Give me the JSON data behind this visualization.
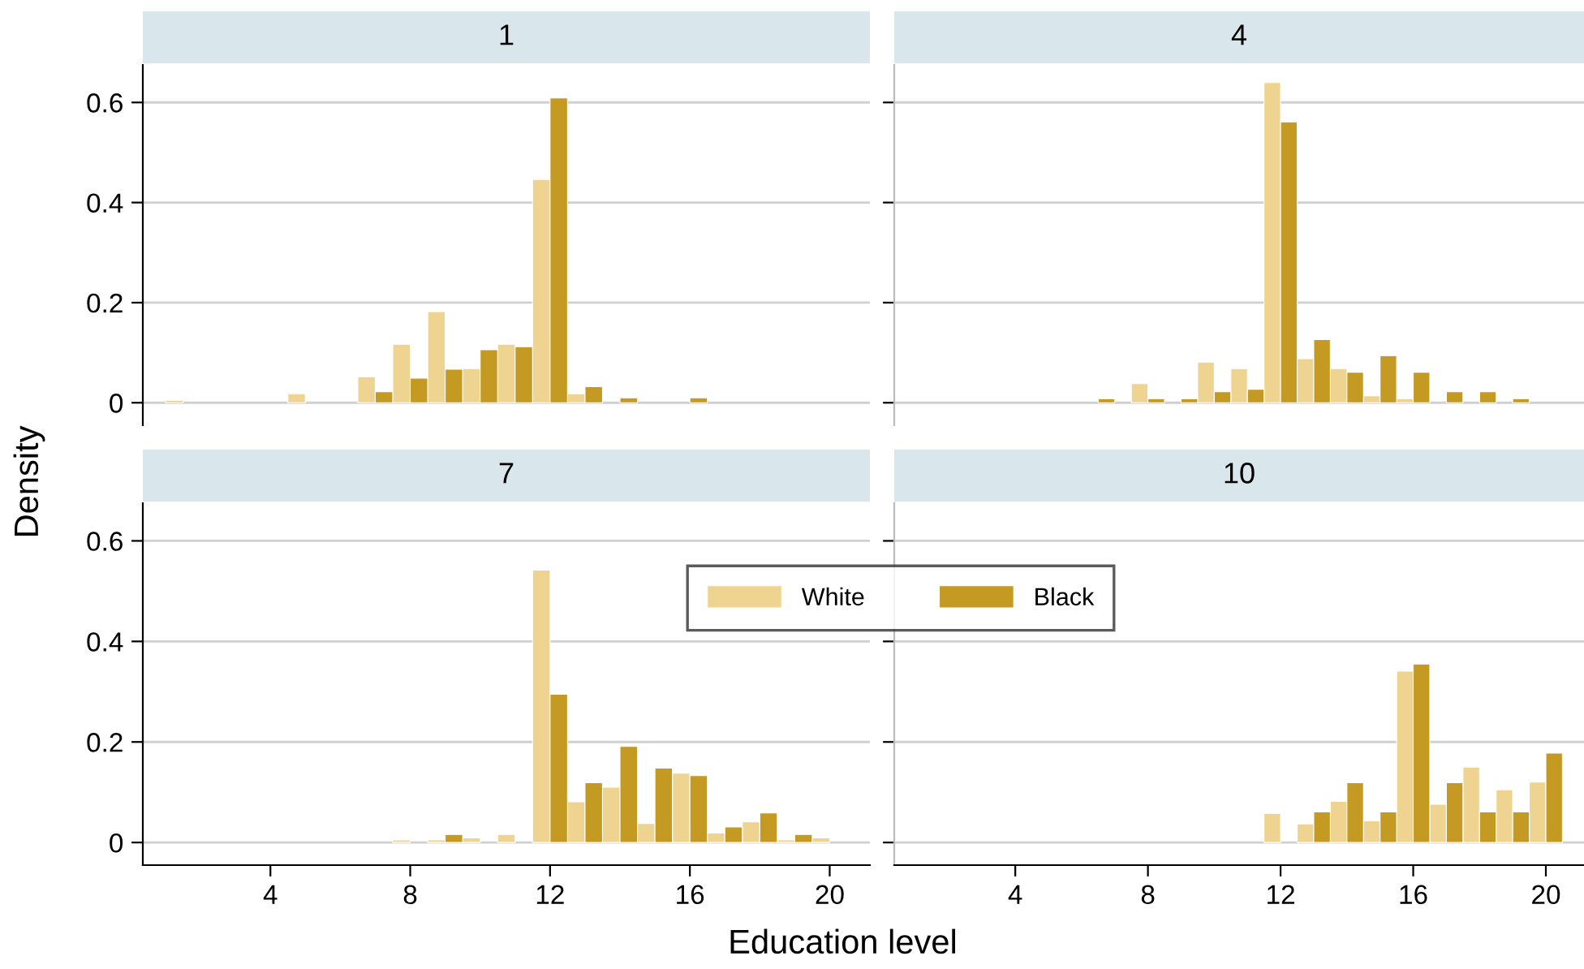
{
  "chart_data": [
    {
      "type": "bar",
      "title": "1",
      "ylabel": "Density",
      "xlim": [
        0.35,
        21.15
      ],
      "ylim": [
        -0.045,
        0.675
      ],
      "xticks": [
        4,
        8,
        12,
        16,
        20
      ],
      "yticks": [
        0,
        0.2,
        0.4,
        0.6
      ],
      "tick_labels": "y",
      "grid": "y",
      "series": [
        {
          "color": "#eed490",
          "x": [
            1.25,
            4.75,
            6.75,
            7.75,
            8.75,
            9.75,
            10.75,
            11.75,
            12.75
          ],
          "values": [
            0.005,
            0.018,
            0.052,
            0.117,
            0.182,
            0.068,
            0.117,
            0.446,
            0.018
          ]
        },
        {
          "color": "#c49a22",
          "x": [
            7.25,
            8.25,
            9.25,
            10.25,
            11.25,
            12.25,
            13.25,
            14.25,
            16.25
          ],
          "values": [
            0.022,
            0.049,
            0.067,
            0.106,
            0.112,
            0.609,
            0.032,
            0.01,
            0.01
          ]
        }
      ]
    },
    {
      "type": "bar",
      "title": "4",
      "xlim": [
        0.35,
        21.15
      ],
      "ylim": [
        -0.045,
        0.675
      ],
      "xticks": [
        4,
        8,
        12,
        16,
        20
      ],
      "yticks": [
        0,
        0.2,
        0.4,
        0.6
      ],
      "tick_labels": false,
      "grid": "y",
      "series": [
        {
          "color": "#eed490",
          "x": [
            7.75,
            9.75,
            10.75,
            11.75,
            12.75,
            13.75,
            14.75,
            15.75
          ],
          "values": [
            0.038,
            0.081,
            0.068,
            0.64,
            0.088,
            0.068,
            0.014,
            0.008
          ]
        },
        {
          "color": "#c49a22",
          "x": [
            6.75,
            8.25,
            9.25,
            10.25,
            11.25,
            12.25,
            13.25,
            14.25,
            15.25,
            16.25,
            17.25,
            18.25,
            19.25
          ],
          "values": [
            0.008,
            0.008,
            0.008,
            0.022,
            0.027,
            0.561,
            0.126,
            0.061,
            0.094,
            0.061,
            0.022,
            0.022,
            0.008
          ]
        }
      ]
    },
    {
      "type": "bar",
      "title": "7",
      "xlabel": "Education level",
      "legend": "top",
      "xlim": [
        0.35,
        21.15
      ],
      "ylim": [
        -0.045,
        0.675
      ],
      "xticks": [
        4,
        8,
        12,
        16,
        20
      ],
      "yticks": [
        0,
        0.2,
        0.4,
        0.6
      ],
      "grid": "y",
      "series": [
        {
          "name": "White",
          "color": "#eed490",
          "x": [
            7.75,
            8.75,
            9.75,
            10.75,
            11.75,
            12.75,
            13.75,
            14.75,
            15.75,
            16.75,
            17.75,
            18.75,
            19.75
          ],
          "values": [
            0.005,
            0.005,
            0.009,
            0.016,
            0.542,
            0.081,
            0.11,
            0.038,
            0.138,
            0.019,
            0.041,
            0.005,
            0.009
          ]
        },
        {
          "name": "Black",
          "color": "#c49a22",
          "x": [
            9.25,
            12.25,
            13.25,
            14.25,
            15.25,
            16.25,
            17.25,
            18.25,
            19.25
          ],
          "values": [
            0.016,
            0.295,
            0.119,
            0.191,
            0.148,
            0.133,
            0.031,
            0.059,
            0.016
          ]
        }
      ]
    },
    {
      "type": "bar",
      "title": "10",
      "xlim": [
        0.35,
        21.15
      ],
      "ylim": [
        -0.045,
        0.675
      ],
      "xticks": [
        4,
        8,
        12,
        16,
        20
      ],
      "yticks": [
        0,
        0.2,
        0.4,
        0.6
      ],
      "tick_labels": "x",
      "grid": "y",
      "series": [
        {
          "color": "#eed490",
          "x": [
            11.75,
            12.75,
            13.75,
            14.75,
            15.75,
            16.75,
            17.75,
            18.75,
            19.75
          ],
          "values": [
            0.058,
            0.037,
            0.082,
            0.043,
            0.341,
            0.076,
            0.15,
            0.105,
            0.12
          ]
        },
        {
          "color": "#c49a22",
          "x": [
            13.25,
            14.25,
            15.25,
            16.25,
            17.25,
            18.25,
            19.25,
            20.25
          ],
          "values": [
            0.061,
            0.119,
            0.061,
            0.355,
            0.119,
            0.061,
            0.061,
            0.178
          ]
        }
      ]
    }
  ]
}
